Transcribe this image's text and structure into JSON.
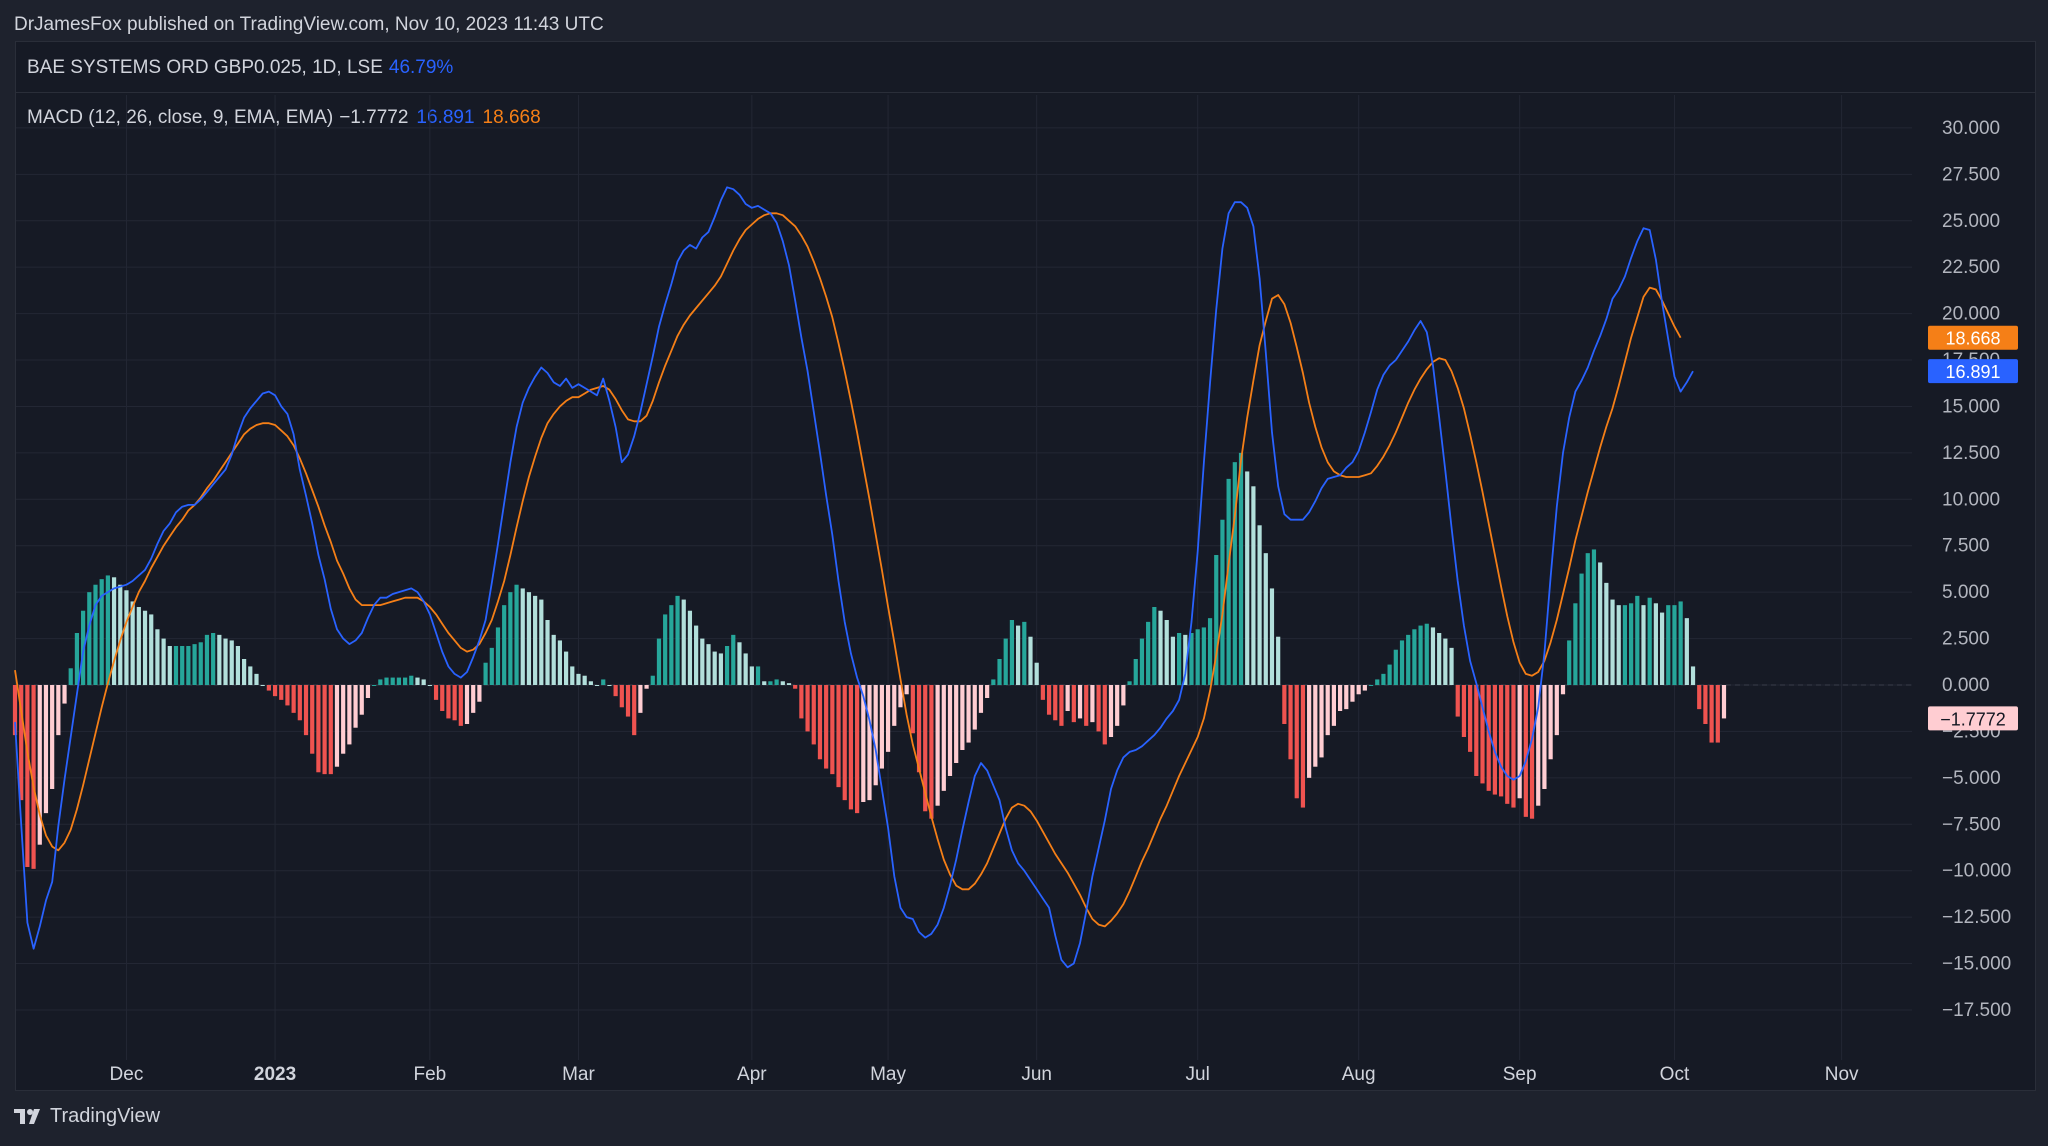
{
  "published": "DrJamesFox published on TradingView.com, Nov 10, 2023 11:43 UTC",
  "symbol": {
    "name": "BAE SYSTEMS ORD GBP0.025, 1D, LSE",
    "change": "46.79%"
  },
  "indicator": {
    "label": "MACD (12, 26, close, 9, EMA, EMA)",
    "hist": "−1.7772",
    "macd": "16.891",
    "signal": "18.668"
  },
  "brand": "TradingView",
  "colors": {
    "bg": "#161a25",
    "macd": "#2962ff",
    "signal": "#f57f17",
    "hist_up_strong": "#26a69a",
    "hist_up_weak": "#b2dfdb",
    "hist_down_strong": "#ef5350",
    "hist_down_weak": "#ffcdd2"
  },
  "chart_data": {
    "type": "line",
    "ylim": [
      -20,
      32
    ],
    "yticks": [
      "30.000",
      "27.500",
      "25.000",
      "22.500",
      "20.000",
      "17.500",
      "15.000",
      "12.500",
      "10.000",
      "7.500",
      "5.000",
      "2.500",
      "0.000",
      "-2.500",
      "-5.000",
      "-7.500",
      "-10.000",
      "-12.500",
      "-15.000",
      "-17.500"
    ],
    "xticks": [
      {
        "label": "Dec",
        "i": 18,
        "bold": false
      },
      {
        "label": "2023",
        "i": 42,
        "bold": true
      },
      {
        "label": "Feb",
        "i": 67,
        "bold": false
      },
      {
        "label": "Mar",
        "i": 91,
        "bold": false
      },
      {
        "label": "Apr",
        "i": 119,
        "bold": false
      },
      {
        "label": "May",
        "i": 141,
        "bold": false
      },
      {
        "label": "Jun",
        "i": 165,
        "bold": false
      },
      {
        "label": "Jul",
        "i": 191,
        "bold": false
      },
      {
        "label": "Aug",
        "i": 217,
        "bold": false
      },
      {
        "label": "Sep",
        "i": 243,
        "bold": false
      },
      {
        "label": "Oct",
        "i": 268,
        "bold": false
      },
      {
        "label": "Nov",
        "i": 295,
        "bold": false
      }
    ],
    "last_labels": {
      "signal": "18.668",
      "macd": "16.891",
      "hist": "−1.7772"
    },
    "series": [
      {
        "name": "MACD",
        "values": [
          -2.0,
          -7.5,
          -12.8,
          -14.2,
          -13.0,
          -11.6,
          -10.6,
          -7.6,
          -5.1,
          -2.8,
          -0.5,
          1.8,
          3.2,
          4.3,
          4.8,
          5.0,
          5.2,
          5.3,
          5.4,
          5.6,
          5.9,
          6.2,
          6.8,
          7.6,
          8.3,
          8.7,
          9.3,
          9.6,
          9.7,
          9.7,
          10.0,
          10.4,
          10.8,
          11.2,
          11.6,
          12.4,
          13.5,
          14.4,
          14.9,
          15.3,
          15.7,
          15.8,
          15.6,
          15.0,
          14.6,
          13.5,
          11.6,
          10.2,
          8.7,
          7.0,
          5.7,
          4.1,
          3.0,
          2.5,
          2.2,
          2.4,
          2.8,
          3.6,
          4.3,
          4.7,
          4.7,
          4.9,
          5.0,
          5.1,
          5.2,
          5.0,
          4.5,
          3.8,
          2.8,
          1.8,
          1.0,
          0.6,
          0.4,
          0.7,
          1.5,
          2.4,
          3.5,
          5.5,
          7.6,
          9.8,
          12.0,
          13.9,
          15.2,
          16.0,
          16.6,
          17.1,
          16.8,
          16.3,
          16.1,
          16.5,
          16.0,
          16.2,
          16.0,
          15.8,
          15.6,
          16.5,
          15.3,
          13.9,
          12.0,
          12.4,
          13.4,
          14.7,
          16.2,
          17.7,
          19.3,
          20.5,
          21.6,
          22.8,
          23.4,
          23.7,
          23.5,
          24.1,
          24.4,
          25.2,
          26.1,
          26.8,
          26.7,
          26.4,
          25.9,
          25.7,
          25.8,
          25.6,
          25.4,
          24.9,
          23.9,
          22.6,
          20.7,
          18.7,
          16.9,
          14.7,
          12.5,
          10.2,
          8.1,
          5.6,
          3.4,
          1.7,
          0.4,
          -0.6,
          -1.9,
          -3.5,
          -5.6,
          -7.7,
          -10.3,
          -12.0,
          -12.5,
          -12.6,
          -13.3,
          -13.6,
          -13.4,
          -12.9,
          -12.0,
          -10.8,
          -9.4,
          -7.8,
          -6.3,
          -4.9,
          -4.2,
          -4.6,
          -5.4,
          -6.2,
          -7.7,
          -8.9,
          -9.6,
          -10.0,
          -10.5,
          -11.0,
          -11.5,
          -12.0,
          -13.5,
          -14.8,
          -15.2,
          -15.0,
          -13.9,
          -12.2,
          -10.3,
          -8.8,
          -7.3,
          -5.6,
          -4.6,
          -3.9,
          -3.6,
          -3.5,
          -3.3,
          -3.0,
          -2.7,
          -2.3,
          -1.8,
          -1.4,
          -0.8,
          0.6,
          3.4,
          7.2,
          12.0,
          16.3,
          20.2,
          23.5,
          25.4,
          26.0,
          26.0,
          25.7,
          24.7,
          21.9,
          17.9,
          13.6,
          10.7,
          9.2,
          8.9,
          8.9,
          8.9,
          9.3,
          9.9,
          10.6,
          11.1,
          11.2,
          11.3,
          11.7,
          12.0,
          12.6,
          13.6,
          14.7,
          15.9,
          16.7,
          17.2,
          17.5,
          18.0,
          18.5,
          19.1,
          19.6,
          19.0,
          17.2,
          14.4,
          11.5,
          8.5,
          5.6,
          3.2,
          1.3,
          0.1,
          -1.2,
          -2.5,
          -3.6,
          -4.4,
          -4.9,
          -5.1,
          -4.9,
          -4.1,
          -2.9,
          -1.2,
          1.7,
          5.8,
          9.6,
          12.5,
          14.4,
          15.8,
          16.4,
          17.1,
          18.0,
          18.8,
          19.7,
          20.8,
          21.3,
          22.0,
          23.0,
          23.9,
          24.6,
          24.5,
          22.9,
          20.6,
          18.6,
          16.6,
          15.8,
          16.3,
          16.9
        ]
      },
      {
        "name": "Signal",
        "values": [
          0.8,
          -1.4,
          -3.6,
          -5.5,
          -7.0,
          -8.1,
          -8.7,
          -8.9,
          -8.5,
          -7.8,
          -6.7,
          -5.4,
          -4.0,
          -2.6,
          -1.2,
          0.1,
          1.3,
          2.4,
          3.4,
          4.2,
          5.0,
          5.6,
          6.3,
          6.9,
          7.5,
          8.0,
          8.5,
          8.9,
          9.4,
          9.7,
          10.1,
          10.6,
          11.0,
          11.5,
          12.0,
          12.5,
          13.0,
          13.5,
          13.8,
          14.0,
          14.1,
          14.1,
          14.0,
          13.7,
          13.4,
          12.9,
          12.2,
          11.4,
          10.5,
          9.6,
          8.6,
          7.7,
          6.7,
          6.0,
          5.2,
          4.6,
          4.3,
          4.3,
          4.3,
          4.3,
          4.4,
          4.5,
          4.6,
          4.7,
          4.7,
          4.7,
          4.5,
          4.2,
          3.8,
          3.3,
          2.8,
          2.4,
          2.0,
          1.8,
          1.9,
          2.2,
          2.8,
          3.5,
          4.5,
          5.6,
          7.0,
          8.5,
          9.9,
          11.2,
          12.3,
          13.3,
          14.1,
          14.6,
          15.0,
          15.3,
          15.5,
          15.5,
          15.7,
          15.9,
          16.0,
          16.1,
          15.9,
          15.4,
          14.8,
          14.3,
          14.2,
          14.2,
          14.5,
          15.3,
          16.3,
          17.2,
          18.0,
          18.8,
          19.4,
          19.9,
          20.3,
          20.7,
          21.1,
          21.5,
          22.0,
          22.7,
          23.4,
          24.0,
          24.5,
          24.8,
          25.1,
          25.3,
          25.4,
          25.4,
          25.3,
          25.0,
          24.7,
          24.2,
          23.6,
          22.8,
          21.9,
          20.9,
          19.8,
          18.4,
          16.9,
          15.3,
          13.6,
          11.8,
          10.0,
          8.1,
          6.2,
          4.2,
          2.3,
          0.3,
          -1.6,
          -3.2,
          -4.5,
          -5.8,
          -7.1,
          -8.3,
          -9.4,
          -10.2,
          -10.8,
          -11.0,
          -11.0,
          -10.7,
          -10.2,
          -9.6,
          -8.8,
          -8.0,
          -7.2,
          -6.6,
          -6.4,
          -6.5,
          -6.8,
          -7.3,
          -7.9,
          -8.5,
          -9.1,
          -9.6,
          -10.1,
          -10.7,
          -11.3,
          -12.0,
          -12.6,
          -12.9,
          -13.0,
          -12.7,
          -12.3,
          -11.8,
          -11.1,
          -10.3,
          -9.5,
          -8.8,
          -8.0,
          -7.2,
          -6.5,
          -5.7,
          -4.9,
          -4.2,
          -3.5,
          -2.8,
          -1.8,
          -0.3,
          1.6,
          3.8,
          6.5,
          9.1,
          12.1,
          14.4,
          16.4,
          18.3,
          19.6,
          20.8,
          21.0,
          20.5,
          19.5,
          18.2,
          16.8,
          15.2,
          13.9,
          12.8,
          12.0,
          11.5,
          11.3,
          11.2,
          11.2,
          11.2,
          11.3,
          11.4,
          11.8,
          12.3,
          12.9,
          13.6,
          14.4,
          15.2,
          15.9,
          16.5,
          17.0,
          17.4,
          17.6,
          17.5,
          16.9,
          16.0,
          14.9,
          13.5,
          12.0,
          10.4,
          8.7,
          7.0,
          5.3,
          3.7,
          2.3,
          1.2,
          0.6,
          0.5,
          0.7,
          1.3,
          2.3,
          3.5,
          4.9,
          6.3,
          7.8,
          9.1,
          10.4,
          11.6,
          12.8,
          13.9,
          14.9,
          16.1,
          17.4,
          18.7,
          19.8,
          20.9,
          21.4,
          21.3,
          20.7,
          20.0,
          19.3,
          18.7
        ]
      },
      {
        "name": "Histogram",
        "values": [
          -2.7,
          -6.2,
          -9.8,
          -9.9,
          -8.6,
          -6.9,
          -5.6,
          -2.7,
          -1.0,
          0.9,
          2.8,
          4.0,
          5.0,
          5.4,
          5.7,
          5.9,
          5.8,
          5.4,
          5.1,
          4.5,
          4.2,
          4.0,
          3.8,
          3.0,
          2.5,
          2.1,
          2.1,
          2.1,
          2.1,
          2.2,
          2.3,
          2.7,
          2.8,
          2.7,
          2.5,
          2.4,
          2.1,
          1.4,
          1.0,
          0.6,
          0.0,
          -0.3,
          -0.6,
          -0.8,
          -1.1,
          -1.5,
          -1.9,
          -2.7,
          -3.7,
          -4.7,
          -4.8,
          -4.8,
          -4.4,
          -3.7,
          -3.2,
          -2.3,
          -1.6,
          -0.7,
          0.0,
          0.3,
          0.4,
          0.4,
          0.4,
          0.4,
          0.5,
          0.4,
          0.3,
          0.0,
          -0.8,
          -1.4,
          -1.8,
          -1.9,
          -2.2,
          -2.1,
          -1.5,
          -0.9,
          1.2,
          2.0,
          3.1,
          4.3,
          5.0,
          5.4,
          5.2,
          5.0,
          4.8,
          4.6,
          3.5,
          2.7,
          2.4,
          1.8,
          1.0,
          0.6,
          0.5,
          0.2,
          0.0,
          0.3,
          0.0,
          -0.6,
          -1.2,
          -1.7,
          -2.7,
          -1.5,
          -0.2,
          0.5,
          2.5,
          3.8,
          4.3,
          4.8,
          4.6,
          4.0,
          3.2,
          2.5,
          2.2,
          1.8,
          1.7,
          2.1,
          2.7,
          2.3,
          1.7,
          1.0,
          1.0,
          0.2,
          0.2,
          0.3,
          0.2,
          0.1,
          -0.2,
          -1.8,
          -2.5,
          -3.2,
          -4.0,
          -4.5,
          -4.8,
          -5.5,
          -6.2,
          -6.7,
          -6.9,
          -6.3,
          -6.2,
          -5.4,
          -4.5,
          -3.6,
          -2.2,
          -1.2,
          -0.5,
          -2.6,
          -4.7,
          -6.8,
          -7.2,
          -6.5,
          -5.7,
          -4.9,
          -4.2,
          -3.5,
          -3.1,
          -2.4,
          -1.5,
          -0.7,
          0.3,
          1.4,
          2.5,
          3.5,
          3.2,
          3.4,
          2.6,
          1.2,
          -0.8,
          -1.6,
          -1.9,
          -2.2,
          -1.4,
          -2.0,
          -1.8,
          -2.2,
          -2.0,
          -2.5,
          -3.2,
          -2.8,
          -2.2,
          -1.1,
          0.2,
          1.4,
          2.5,
          3.4,
          4.2,
          4.0,
          3.5,
          2.6,
          2.8,
          2.7,
          2.8,
          3.0,
          3.1,
          3.6,
          7.0,
          8.9,
          11.1,
          12.0,
          12.5,
          11.5,
          10.7,
          8.6,
          7.1,
          5.2,
          2.6,
          -2.1,
          -4.0,
          -6.1,
          -6.6,
          -5.0,
          -4.4,
          -3.9,
          -2.7,
          -2.2,
          -1.4,
          -1.3,
          -0.9,
          -0.5,
          -0.3,
          0.0,
          0.3,
          0.6,
          1.1,
          1.9,
          2.4,
          2.7,
          3.0,
          3.2,
          3.3,
          3.1,
          2.8,
          2.5,
          2.0,
          -1.7,
          -2.8,
          -3.6,
          -4.9,
          -5.3,
          -5.7,
          -5.9,
          -6.0,
          -6.4,
          -6.6,
          -6.1,
          -7.1,
          -7.2,
          -6.5,
          -5.6,
          -4.0,
          -2.7,
          -0.5,
          2.4,
          4.4,
          6.0,
          7.1,
          7.3,
          6.6,
          5.5,
          4.6,
          4.3,
          4.3,
          4.4,
          4.8,
          4.3,
          4.7,
          4.4,
          3.9,
          4.3,
          4.3,
          4.5,
          3.6,
          1.0,
          -1.3,
          -2.1,
          -3.1,
          -3.1,
          -1.8
        ]
      }
    ],
    "grid": true,
    "zero_line": true
  }
}
